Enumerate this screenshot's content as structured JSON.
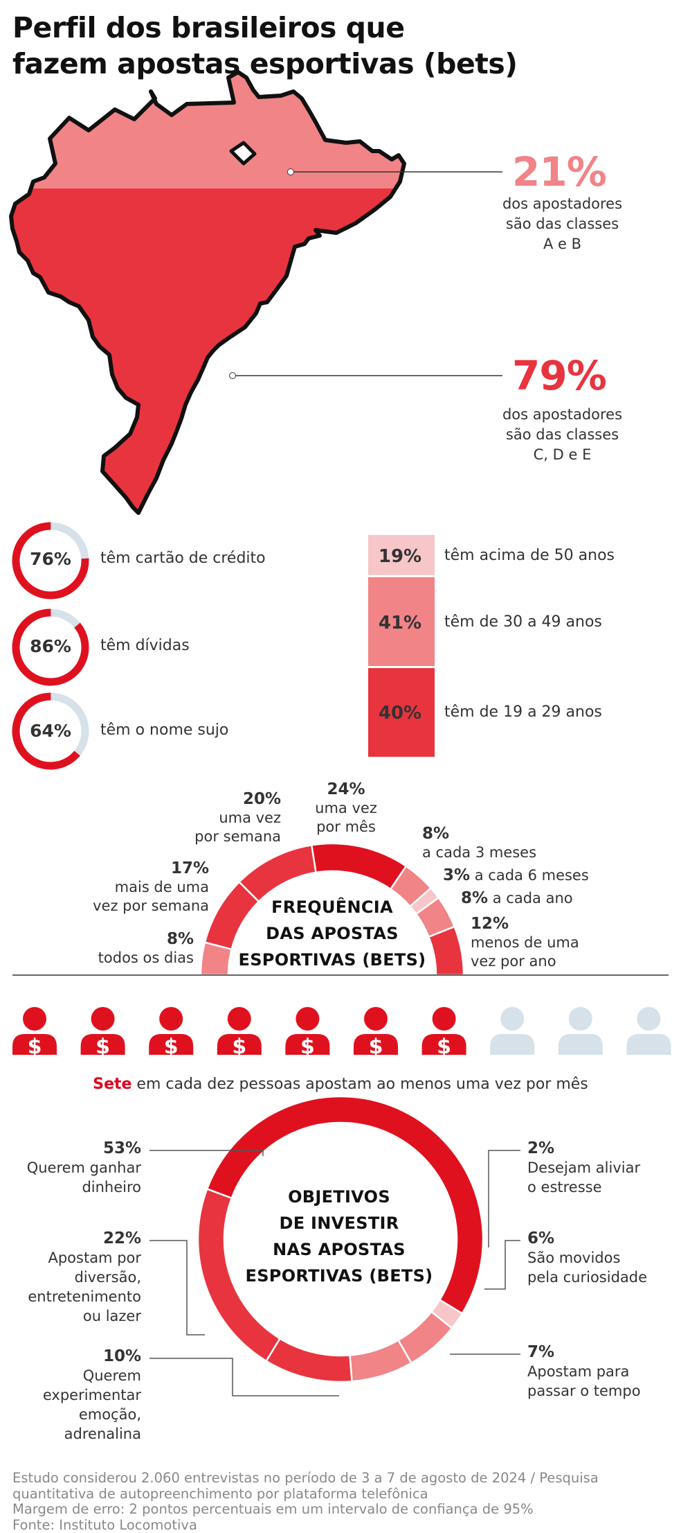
{
  "title_line1": "Perfil dos brasileiros que",
  "title_line2": "fazem apostas esportivas (bets)",
  "colors": {
    "dark_red": "#e8343e",
    "light_red": "#f08487",
    "pale_red": "#f7c6c8",
    "ring_red": "#e0111f",
    "gray_blue": "#d6e1ea"
  },
  "map": {
    "top": {
      "pct": "21%",
      "line1": "dos apostadores",
      "line2": "são das classes",
      "line3": "A e B"
    },
    "bottom": {
      "pct": "79%",
      "line1": "dos apostadores",
      "line2": "são das classes",
      "line3": "C, D e E"
    }
  },
  "rings": [
    {
      "pct": "76%",
      "value": 76,
      "label": "têm cartão de crédito"
    },
    {
      "pct": "86%",
      "value": 86,
      "label": "têm dívidas"
    },
    {
      "pct": "64%",
      "value": 64,
      "label": "têm o nome sujo"
    }
  ],
  "age": [
    {
      "pct": "19%",
      "value": 19,
      "label": "têm acima de 50 anos"
    },
    {
      "pct": "41%",
      "value": 41,
      "label": "têm de 30 a 49 anos"
    },
    {
      "pct": "40%",
      "value": 40,
      "label": "têm de 19 a 29 anos"
    }
  ],
  "frequency": {
    "title_l1": "FREQUÊNCIA",
    "title_l2": "DAS APOSTAS",
    "title_l3": "ESPORTIVAS (BETS)",
    "items": [
      {
        "pct": "8%",
        "l1": "todos os dias",
        "l2": ""
      },
      {
        "pct": "17%",
        "l1": "mais de uma",
        "l2": "vez por semana"
      },
      {
        "pct": "20%",
        "l1": "uma vez",
        "l2": "por semana"
      },
      {
        "pct": "24%",
        "l1": "uma vez",
        "l2": "por mês"
      },
      {
        "pct": "8%",
        "l1": "a cada 3 meses",
        "l2": ""
      },
      {
        "pct": "3%",
        "l1": "a cada 6 meses",
        "l2": ""
      },
      {
        "pct": "8%",
        "l1": "a cada ano",
        "l2": ""
      },
      {
        "pct": "12%",
        "l1": "menos de uma",
        "l2": "vez por ano"
      }
    ]
  },
  "people": {
    "highlighted": 7,
    "total": 10,
    "symbol": "$"
  },
  "sete": {
    "bold": "Sete",
    "rest": " em cada dez pessoas apostam ao menos uma vez por mês"
  },
  "objectives": {
    "title_l1": "OBJETIVOS",
    "title_l2": "DE INVESTIR",
    "title_l3": "NAS APOSTAS",
    "title_l4": "ESPORTIVAS (BETS)",
    "items": [
      {
        "pct": "53%",
        "l1": "Querem ganhar",
        "l2": "dinheiro",
        "l3": "",
        "l4": ""
      },
      {
        "pct": "2%",
        "l1": "Desejam aliviar",
        "l2": "o estresse",
        "l3": "",
        "l4": ""
      },
      {
        "pct": "6%",
        "l1": "São movidos",
        "l2": "pela curiosidade",
        "l3": "",
        "l4": ""
      },
      {
        "pct": "7%",
        "l1": "Apostam para",
        "l2": "passar o tempo",
        "l3": "",
        "l4": ""
      },
      {
        "pct": "10%",
        "l1": "Querem",
        "l2": "experimentar",
        "l3": "emoção,",
        "l4": "adrenalina"
      },
      {
        "pct": "22%",
        "l1": "Apostam por",
        "l2": "diversão,",
        "l3": "entretenimento",
        "l4": "ou lazer"
      }
    ]
  },
  "footer": {
    "l1": "Estudo considerou 2.060 entrevistas no período de 3 a 7 de agosto de 2024 / Pesquisa",
    "l2": "quantitativa de autopreenchimento por plataforma telefônica",
    "l3": "Margem de erro: 2 pontos percentuais em um intervalo de confiança de 95%",
    "l4": "Fonte: Instituto Locomotiva"
  },
  "chart_data": [
    {
      "type": "bar",
      "categories": [
        "A e B",
        "C, D e E"
      ],
      "values": [
        21,
        79
      ]
    },
    {
      "type": "pie",
      "categories": [
        "têm cartão de crédito",
        "têm dívidas",
        "têm o nome sujo"
      ],
      "values": [
        76,
        86,
        64
      ]
    },
    {
      "type": "bar",
      "categories": [
        "têm acima de 50 anos",
        "têm de 30 a 49 anos",
        "têm de 19 a 29 anos"
      ],
      "values": [
        19,
        41,
        40
      ]
    },
    {
      "type": "pie",
      "categories": [
        "todos os dias",
        "mais de uma vez por semana",
        "uma vez por semana",
        "uma vez por mês",
        "a cada 3 meses",
        "a cada 6 meses",
        "a cada ano",
        "menos de uma vez por ano"
      ],
      "values": [
        8,
        17,
        20,
        24,
        8,
        3,
        8,
        12
      ]
    },
    {
      "type": "pie",
      "categories": [
        "Querem ganhar dinheiro",
        "Desejam aliviar o estresse",
        "São movidos pela curiosidade",
        "Apostam para passar o tempo",
        "Querem experimentar emoção, adrenalina",
        "Apostam por diversão, entretenimento ou lazer"
      ],
      "values": [
        53,
        2,
        6,
        7,
        10,
        22
      ]
    }
  ]
}
